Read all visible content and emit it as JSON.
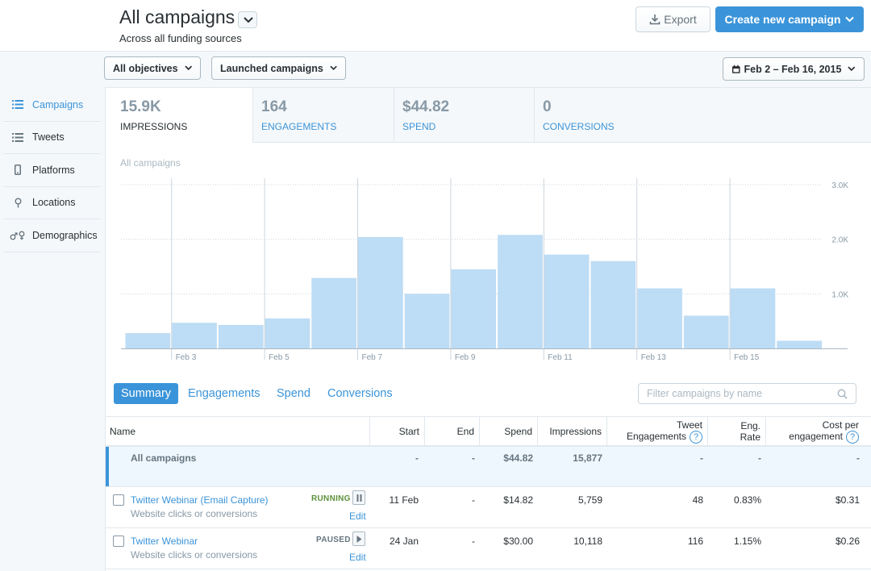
{
  "header": {
    "title": "All campaigns",
    "subtitle": "Across all funding sources",
    "export_label": "Export",
    "create_label": "Create new campaign"
  },
  "filters": {
    "objectives": "All objectives",
    "status": "Launched campaigns",
    "date_range": "Feb 2 – Feb 16, 2015"
  },
  "sidebar": {
    "items": [
      {
        "label": "Campaigns",
        "icon": "list-icon",
        "active": true
      },
      {
        "label": "Tweets",
        "icon": "list-icon",
        "active": false
      },
      {
        "label": "Platforms",
        "icon": "mobile-icon",
        "active": false
      },
      {
        "label": "Locations",
        "icon": "location-pin-icon",
        "active": false
      },
      {
        "label": "Demographics",
        "icon": "gender-icon",
        "active": false
      }
    ]
  },
  "metrics": [
    {
      "value": "15.9K",
      "label": "IMPRESSIONS",
      "active": true
    },
    {
      "value": "164",
      "label": "ENGAGEMENTS",
      "active": false
    },
    {
      "value": "$44.82",
      "label": "SPEND",
      "active": false
    },
    {
      "value": "0",
      "label": "CONVERSIONS",
      "active": false
    }
  ],
  "chart_subtitle": "All campaigns",
  "chart_data": {
    "type": "bar",
    "categories": [
      "Feb 2",
      "Feb 3",
      "Feb 4",
      "Feb 5",
      "Feb 6",
      "Feb 7",
      "Feb 8",
      "Feb 9",
      "Feb 10",
      "Feb 11",
      "Feb 12",
      "Feb 13",
      "Feb 14",
      "Feb 15",
      "Feb 16"
    ],
    "x_tick_labels": [
      "Feb 3",
      "Feb 5",
      "Feb 7",
      "Feb 9",
      "Feb 11",
      "Feb 13",
      "Feb 15"
    ],
    "values": [
      280,
      470,
      430,
      550,
      1290,
      2040,
      1000,
      1450,
      2080,
      1720,
      1600,
      1100,
      600,
      1100,
      140
    ],
    "y_ticks": [
      1000,
      2000,
      3000
    ],
    "y_tick_labels": [
      "1.0K",
      "2.0K",
      "3.0K"
    ],
    "ylim": [
      0,
      3000
    ],
    "grid": true,
    "bar_color": "#bddcf5"
  },
  "tabs": [
    "Summary",
    "Engagements",
    "Spend",
    "Conversions"
  ],
  "search": {
    "placeholder": "Filter campaigns by name"
  },
  "table": {
    "headers": {
      "name": "Name",
      "start": "Start",
      "end": "End",
      "spend": "Spend",
      "impressions": "Impressions",
      "tweet_eng_1": "Tweet",
      "tweet_eng_2": "Engagements",
      "eng_rate_1": "Eng.",
      "eng_rate_2": "Rate",
      "cpe_1": "Cost per",
      "cpe_2": "engagement",
      "help": "?"
    },
    "total": {
      "name": "All campaigns",
      "start": "-",
      "end": "-",
      "spend": "$44.82",
      "impressions": "15,877",
      "engagements": "-",
      "rate": "-",
      "cpe": "-"
    },
    "rows": [
      {
        "name": "Twitter Webinar (Email Capture)",
        "sub": "Website clicks or conversions",
        "status": "RUNNING",
        "status_color": "#5c913b",
        "edit": "Edit",
        "start": "11 Feb",
        "end": "-",
        "spend": "$14.82",
        "impressions": "5,759",
        "engagements": "48",
        "rate": "0.83%",
        "cpe": "$0.31"
      },
      {
        "name": "Twitter Webinar",
        "sub": "Website clicks or conversions",
        "status": "PAUSED",
        "status_color": "#66757f",
        "edit": "Edit",
        "start": "24 Jan",
        "end": "-",
        "spend": "$30.00",
        "impressions": "10,118",
        "engagements": "116",
        "rate": "1.15%",
        "cpe": "$0.26"
      }
    ]
  }
}
